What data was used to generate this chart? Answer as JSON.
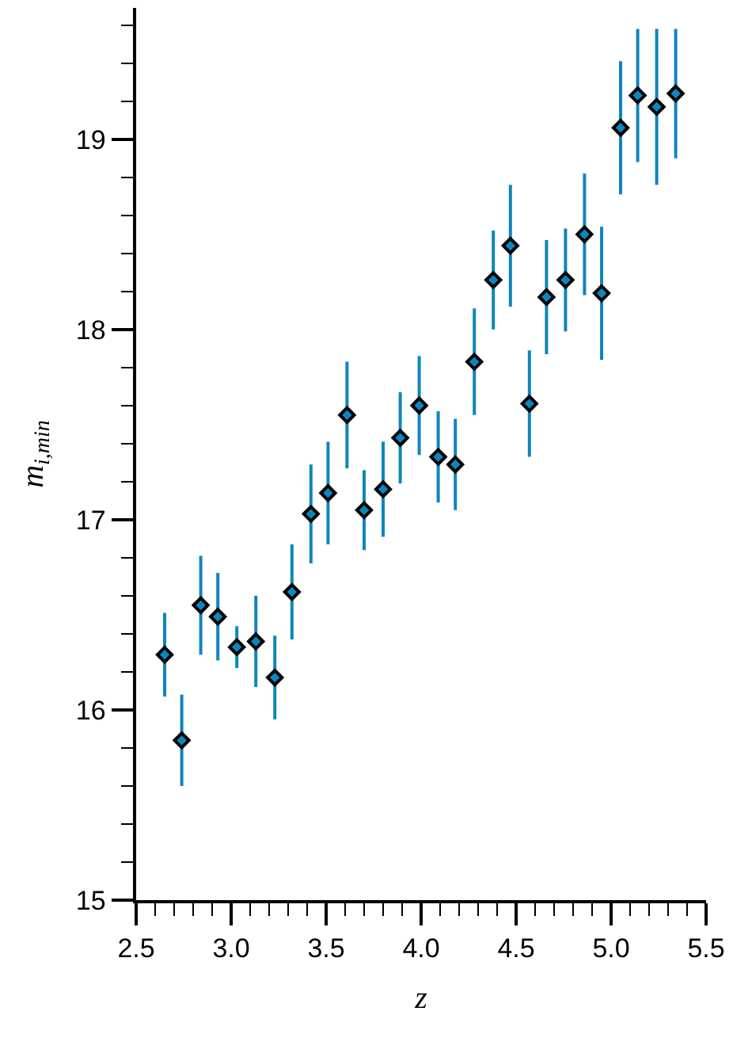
{
  "chart_data": {
    "type": "scatter",
    "xlabel": "z",
    "ylabel": "m$_{i,min}$",
    "x": [
      2.65,
      2.74,
      2.84,
      2.93,
      3.03,
      3.13,
      3.23,
      3.32,
      3.42,
      3.51,
      3.61,
      3.7,
      3.8,
      3.89,
      3.99,
      4.09,
      4.18,
      4.28,
      4.38,
      4.47,
      4.57,
      4.66,
      4.76,
      4.86,
      4.95,
      5.05,
      5.14,
      5.24,
      5.34
    ],
    "series": [
      {
        "color": "#0e86bd",
        "values": [
          16.29,
          15.84,
          16.55,
          16.49,
          16.33,
          16.36,
          16.17,
          16.62,
          17.03,
          17.14,
          17.55,
          17.05,
          17.16,
          17.43,
          17.6,
          17.33,
          17.29,
          17.83,
          18.26,
          18.44,
          17.61,
          18.17,
          18.26,
          18.5,
          18.19,
          19.06,
          19.23,
          19.17,
          19.24
        ],
        "errors": [
          0.22,
          0.24,
          0.26,
          0.23,
          0.11,
          0.24,
          0.22,
          0.25,
          0.26,
          0.27,
          0.28,
          0.21,
          0.25,
          0.24,
          0.26,
          0.24,
          0.24,
          0.28,
          0.26,
          0.32,
          0.28,
          0.3,
          0.27,
          0.32,
          0.35,
          0.35,
          0.35,
          0.41,
          0.34
        ]
      }
    ],
    "marker": "diamond",
    "legend": false,
    "xlim": [
      2.5,
      5.5
    ],
    "xticks": [
      {
        "value": 2.5,
        "label": "2.5"
      },
      {
        "value": 3.0,
        "label": "3.0"
      },
      {
        "value": 3.5,
        "label": "3.5"
      },
      {
        "value": 4.0,
        "label": "4.0"
      },
      {
        "value": 4.5,
        "label": "4.5"
      },
      {
        "value": 5.0,
        "label": "5.0"
      },
      {
        "value": 5.5,
        "label": "5.5"
      }
    ],
    "ylim": [
      15,
      19.69
    ],
    "yticks": [
      15,
      16,
      17,
      18,
      19
    ]
  }
}
